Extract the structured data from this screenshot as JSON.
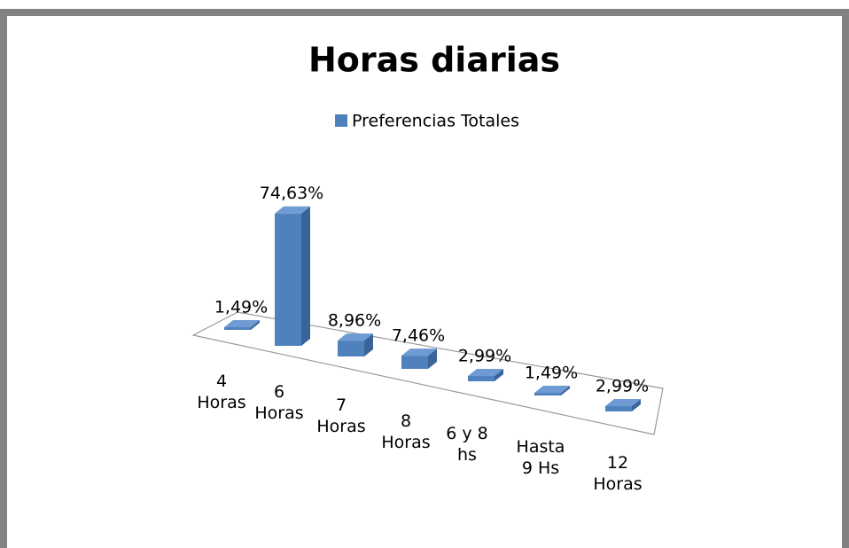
{
  "chart_data": {
    "type": "bar3d",
    "title": "Horas diarias",
    "categories": [
      "4 Horas",
      "6 Horas",
      "7 Horas",
      "8 Horas",
      "6 y 8 hs",
      "Hasta 9 Hs",
      "12 Horas"
    ],
    "series": [
      {
        "name": "Preferencias Totales",
        "color": "#4f81bd",
        "values": [
          1.49,
          74.63,
          8.96,
          7.46,
          2.99,
          1.49,
          2.99
        ],
        "value_labels": [
          "1,49%",
          "74,63%",
          "8,96%",
          "7,46%",
          "2,99%",
          "1,49%",
          "2,99%"
        ]
      }
    ],
    "legend": "top"
  }
}
